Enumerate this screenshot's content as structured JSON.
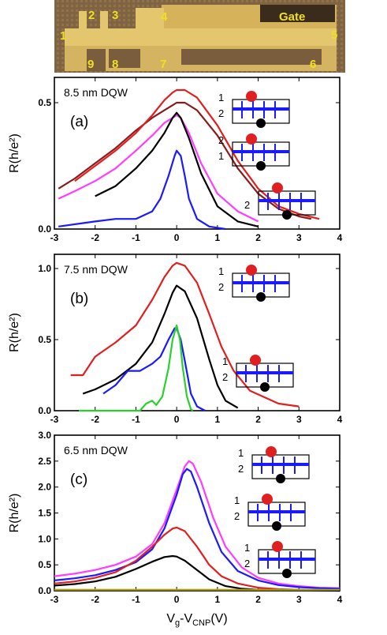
{
  "device": {
    "terminal_labels": [
      "1",
      "2",
      "3",
      "4",
      "5",
      "6",
      "7",
      "8",
      "9"
    ],
    "gate_label": "Gate"
  },
  "chart_data": [
    {
      "type": "line",
      "panel": "(a)",
      "title": "8.5 nm DQW",
      "xlabel": "",
      "ylabel": "R(h/e²)",
      "xlim": [
        -3,
        4
      ],
      "ylim": [
        0,
        0.6
      ],
      "xticks": [
        "-3",
        "-2",
        "-1",
        "0",
        "1",
        "2",
        "3",
        "4"
      ],
      "yticks": [
        "0.0",
        "0.5"
      ],
      "series": [
        {
          "color": "#8b1a1a",
          "x": [
            -2.9,
            -2.5,
            -2,
            -1.5,
            -1,
            -0.6,
            -0.3,
            -0.1,
            0,
            0.2,
            0.5,
            1,
            1.5,
            2,
            2.5,
            3,
            3.3
          ],
          "y": [
            0.16,
            0.2,
            0.26,
            0.32,
            0.39,
            0.44,
            0.47,
            0.49,
            0.5,
            0.5,
            0.47,
            0.37,
            0.24,
            0.14,
            0.08,
            0.05,
            0.04
          ]
        },
        {
          "color": "#e02020",
          "x": [
            -2.5,
            -2,
            -1.5,
            -1,
            -0.6,
            -0.3,
            -0.1,
            0,
            0.2,
            0.5,
            1,
            1.5,
            2,
            2.5,
            3,
            3.5
          ],
          "y": [
            0.19,
            0.25,
            0.31,
            0.38,
            0.45,
            0.51,
            0.54,
            0.55,
            0.55,
            0.52,
            0.41,
            0.27,
            0.16,
            0.09,
            0.06,
            0.04
          ]
        },
        {
          "color": "#ff3cff",
          "x": [
            -2.9,
            -2.5,
            -2,
            -1.5,
            -1,
            -0.6,
            -0.3,
            -0.1,
            0,
            0.1,
            0.3,
            0.6,
            1,
            1.5,
            2
          ],
          "y": [
            0.12,
            0.15,
            0.19,
            0.24,
            0.31,
            0.37,
            0.42,
            0.44,
            0.45,
            0.44,
            0.38,
            0.26,
            0.14,
            0.07,
            0.03
          ]
        },
        {
          "color": "#000000",
          "x": [
            -2.0,
            -1.5,
            -1,
            -0.6,
            -0.3,
            -0.1,
            0,
            0.1,
            0.3,
            0.6,
            1,
            1.5,
            2
          ],
          "y": [
            0.13,
            0.17,
            0.24,
            0.31,
            0.38,
            0.44,
            0.46,
            0.44,
            0.36,
            0.22,
            0.09,
            0.03,
            0.01
          ]
        },
        {
          "color": "#1a1aff",
          "x": [
            -2.9,
            -2,
            -1.5,
            -1,
            -0.6,
            -0.4,
            -0.2,
            -0.05,
            0,
            0.1,
            0.2,
            0.3,
            0.5,
            0.8,
            1.2
          ],
          "y": [
            0.01,
            0.03,
            0.04,
            0.04,
            0.07,
            0.12,
            0.21,
            0.29,
            0.31,
            0.29,
            0.21,
            0.12,
            0.04,
            0.01,
            0.0
          ]
        }
      ],
      "insets": [
        {
          "labels": [
            "1",
            "2"
          ],
          "top_label": "1",
          "bottom_label": "2"
        },
        {
          "labels": [
            "2",
            "1"
          ],
          "top_label": "2",
          "bottom_label": "1"
        },
        {
          "labels": [
            "2"
          ],
          "top_label": "",
          "bottom_label": "2"
        }
      ]
    },
    {
      "type": "line",
      "panel": "(b)",
      "title": "7.5 nm DQW",
      "xlabel": "",
      "ylabel": "R(h/e²)",
      "xlim": [
        -3,
        4
      ],
      "ylim": [
        0,
        1.1
      ],
      "xticks": [
        "-3",
        "-2",
        "-1",
        "0",
        "1",
        "2",
        "3",
        "4"
      ],
      "yticks": [
        "0.0",
        "0.5",
        "1.0"
      ],
      "series": [
        {
          "color": "#e02020",
          "x": [
            -2.6,
            -2.3,
            -2,
            -1.5,
            -1,
            -0.6,
            -0.3,
            -0.1,
            0,
            0.2,
            0.5,
            0.8,
            1.1,
            1.4,
            1.8,
            2.5,
            3.0
          ],
          "y": [
            0.25,
            0.25,
            0.38,
            0.48,
            0.6,
            0.78,
            0.94,
            1.02,
            1.04,
            1.02,
            0.9,
            0.68,
            0.45,
            0.28,
            0.14,
            0.05,
            0.03
          ]
        },
        {
          "color": "#000000",
          "x": [
            -2.3,
            -2,
            -1.5,
            -1,
            -0.6,
            -0.3,
            -0.1,
            0,
            0.2,
            0.5,
            0.8,
            1.0,
            1.2,
            1.5
          ],
          "y": [
            0.12,
            0.15,
            0.22,
            0.33,
            0.48,
            0.68,
            0.83,
            0.88,
            0.84,
            0.65,
            0.36,
            0.18,
            0.07,
            0.02
          ]
        },
        {
          "color": "#1a1aff",
          "x": [
            -1.8,
            -1.5,
            -1.2,
            -0.9,
            -0.6,
            -0.4,
            -0.2,
            -0.05,
            0.0,
            0.1,
            0.2,
            0.35,
            0.5,
            0.7
          ],
          "y": [
            0.12,
            0.18,
            0.28,
            0.28,
            0.33,
            0.38,
            0.5,
            0.58,
            0.58,
            0.5,
            0.35,
            0.12,
            0.03,
            0.0
          ]
        },
        {
          "color": "#2ad12a",
          "x": [
            -2.4,
            -0.9,
            -0.75,
            -0.6,
            -0.5,
            -0.35,
            -0.2,
            -0.1,
            0.0,
            0.08,
            0.15,
            0.25,
            0.35,
            0.4
          ],
          "y": [
            0.0,
            0.0,
            0.05,
            0.07,
            0.04,
            0.1,
            0.3,
            0.5,
            0.6,
            0.5,
            0.3,
            0.1,
            0.01,
            0.0
          ]
        }
      ],
      "insets": [
        {
          "labels": [
            "1",
            "2"
          ],
          "top_label": "1",
          "bottom_label": "2"
        },
        {
          "labels": [
            "1",
            "2"
          ],
          "top_label": "1",
          "bottom_label": "2"
        }
      ]
    },
    {
      "type": "line",
      "panel": "(c)",
      "title": "6.5 nm DQW",
      "xlabel": "Vᵧ-Vᴄɴᴘ(V)",
      "xlabel_main": "V",
      "xlabel_sub1": "g",
      "xlabel_mid": "-V",
      "xlabel_sub2": "CNP",
      "xlabel_tail": "(V)",
      "ylabel": "R(h/e²)",
      "xlim": [
        -3,
        4
      ],
      "ylim": [
        0,
        3.0
      ],
      "xticks": [
        "-3",
        "-2",
        "-1",
        "0",
        "1",
        "2",
        "3",
        "4"
      ],
      "yticks": [
        "0.0",
        "0.5",
        "1.0",
        "1.5",
        "2.0",
        "2.5",
        "3.0"
      ],
      "series": [
        {
          "color": "#ff3cff",
          "x": [
            -3,
            -2.5,
            -2,
            -1.5,
            -1,
            -0.6,
            -0.3,
            0,
            0.2,
            0.3,
            0.4,
            0.6,
            0.9,
            1.2,
            1.6,
            2,
            2.5,
            3,
            3.5,
            4
          ],
          "y": [
            0.28,
            0.33,
            0.4,
            0.5,
            0.66,
            0.9,
            1.3,
            1.95,
            2.4,
            2.5,
            2.45,
            2.1,
            1.4,
            0.85,
            0.45,
            0.25,
            0.14,
            0.09,
            0.06,
            0.05
          ]
        },
        {
          "color": "#1a1aff",
          "x": [
            -3,
            -2.5,
            -2,
            -1.5,
            -1,
            -0.6,
            -0.3,
            0,
            0.15,
            0.25,
            0.35,
            0.5,
            0.8,
            1.1,
            1.5,
            2,
            2.5,
            3,
            3.5,
            4
          ],
          "y": [
            0.2,
            0.24,
            0.3,
            0.4,
            0.55,
            0.8,
            1.2,
            1.85,
            2.25,
            2.35,
            2.3,
            2.0,
            1.3,
            0.75,
            0.38,
            0.2,
            0.11,
            0.07,
            0.05,
            0.04
          ]
        },
        {
          "color": "#e02020",
          "x": [
            -3,
            -2.5,
            -2,
            -1.5,
            -1,
            -0.6,
            -0.3,
            -0.1,
            0,
            0.2,
            0.5,
            0.8,
            1.1,
            1.5,
            2,
            2.5,
            3,
            3.5,
            4
          ],
          "y": [
            0.14,
            0.18,
            0.25,
            0.36,
            0.58,
            0.85,
            1.08,
            1.2,
            1.22,
            1.15,
            0.85,
            0.5,
            0.28,
            0.14,
            0.06,
            0.03,
            0.02,
            0.01,
            0.01
          ]
        },
        {
          "color": "#000000",
          "x": [
            -3,
            -2.5,
            -2,
            -1.5,
            -1,
            -0.6,
            -0.3,
            -0.1,
            0,
            0.2,
            0.5,
            0.8,
            1.2,
            1.6,
            2,
            3,
            4
          ],
          "y": [
            0.1,
            0.13,
            0.18,
            0.27,
            0.42,
            0.56,
            0.65,
            0.67,
            0.66,
            0.58,
            0.4,
            0.22,
            0.09,
            0.04,
            0.02,
            0.01,
            0.0
          ]
        },
        {
          "color": "#b0a010",
          "x": [
            -3,
            -1,
            0,
            1,
            2,
            3,
            4
          ],
          "y": [
            0.02,
            0.02,
            0.02,
            0.02,
            0.02,
            0.02,
            0.02
          ]
        }
      ],
      "insets": [
        {
          "labels": [
            "1",
            "2"
          ],
          "top_label": "1",
          "bottom_label": "2"
        },
        {
          "labels": [
            "1",
            "2"
          ],
          "top_label": "1",
          "bottom_label": "2"
        },
        {
          "labels": [
            "1",
            "2"
          ],
          "top_label": "1",
          "bottom_label": "2"
        }
      ]
    }
  ]
}
